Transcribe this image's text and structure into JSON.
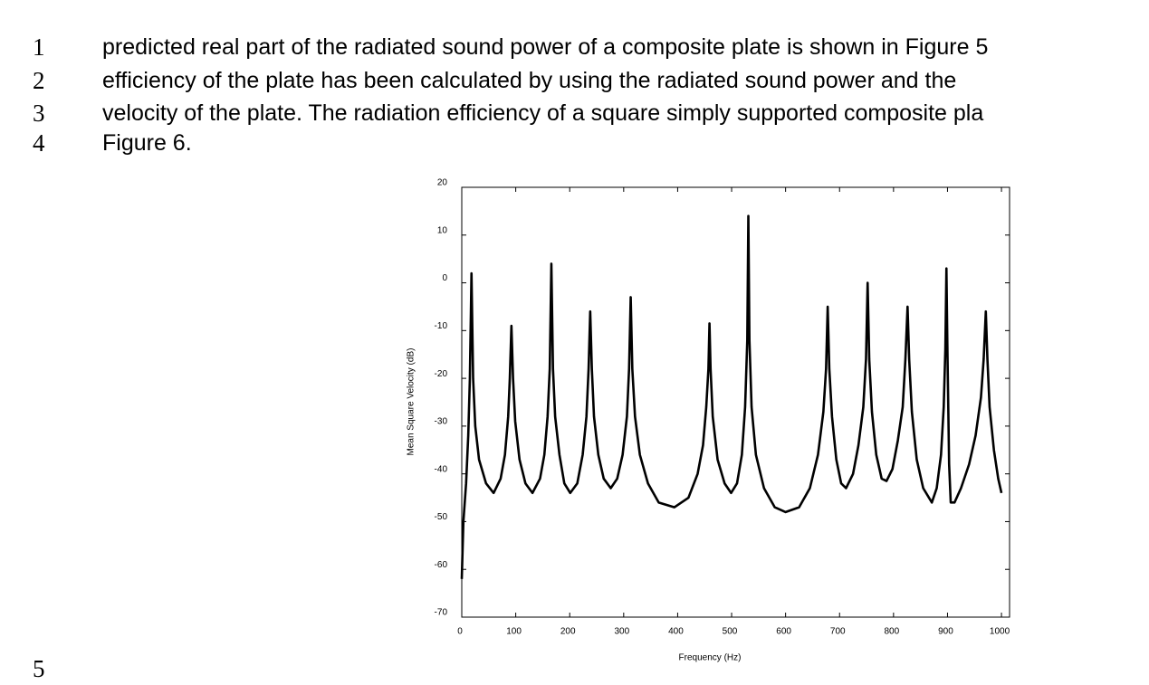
{
  "text": {
    "line_numbers": [
      "1",
      "2",
      "3",
      "4",
      "5"
    ],
    "lines": [
      "predicted real part of the radiated sound power of a composite plate is shown in Figure 5",
      "efficiency of the plate has been calculated by using the radiated sound power and the",
      "velocity of the plate. The radiation efficiency of a square simply supported composite pla",
      "Figure 6."
    ]
  },
  "chart_data": {
    "type": "line",
    "x_label": "Frequency (Hz)",
    "y_label": "Mean Square Velocity (dB)",
    "x": [
      0,
      3,
      8,
      12,
      15,
      18,
      21,
      25,
      32,
      45,
      59,
      72,
      80,
      86,
      89,
      92,
      95,
      99,
      107,
      118,
      131,
      145,
      153,
      159,
      163,
      166,
      169,
      173,
      181,
      190,
      201,
      214,
      224,
      231,
      235,
      238,
      241,
      245,
      253,
      263,
      276,
      288,
      298,
      306,
      310,
      313,
      316,
      321,
      330,
      345,
      365,
      394,
      420,
      437,
      447,
      453,
      457,
      459,
      461,
      465,
      474,
      487,
      499,
      510,
      519,
      525,
      529,
      531,
      533,
      537,
      545,
      560,
      580,
      600,
      625,
      645,
      660,
      670,
      675,
      678,
      681,
      686,
      694,
      703,
      712,
      725,
      735,
      744,
      749,
      752,
      755,
      760,
      768,
      778,
      787,
      798,
      808,
      817,
      822,
      826,
      829,
      834,
      843,
      855,
      871,
      880,
      888,
      893,
      896,
      898,
      900,
      903,
      906,
      913,
      925,
      940,
      952,
      962,
      967,
      971,
      974,
      978,
      986,
      994,
      1000
    ],
    "series": [
      {
        "color": "#000000",
        "values": [
          -62,
          -50,
          -42,
          -32,
          -20,
          2,
          -20,
          -30,
          -37,
          -42,
          -44,
          -41,
          -36,
          -28,
          -20,
          -9,
          -20,
          -29,
          -37,
          -42,
          -44,
          -41,
          -36,
          -28,
          -18,
          4,
          -18,
          -28,
          -36,
          -42,
          -44,
          -42,
          -36,
          -28,
          -18,
          -6,
          -18,
          -28,
          -36,
          -41,
          -43,
          -41,
          -36,
          -28,
          -18,
          -3,
          -18,
          -28,
          -36,
          -42,
          -46,
          -47,
          -45,
          -40,
          -34,
          -26,
          -18,
          -8.5,
          -18,
          -28,
          -37,
          -42,
          -44,
          -42,
          -36,
          -26,
          -12,
          14,
          -12,
          -26,
          -36,
          -43,
          -47,
          -48,
          -47,
          -43,
          -36,
          -27,
          -18,
          -5,
          -18,
          -28,
          -37,
          -42,
          -43,
          -40,
          -34,
          -26,
          -16,
          0,
          -16,
          -27,
          -36,
          -41,
          -41.5,
          -39,
          -33,
          -26,
          -16,
          -5,
          -16,
          -27,
          -37,
          -43,
          -46,
          -43,
          -36,
          -26,
          -14,
          3,
          -15,
          -38,
          -46,
          -46,
          -43,
          -38,
          -32,
          -24,
          -16,
          -6,
          -16,
          -26,
          -35,
          -41,
          -44
        ]
      }
    ],
    "xlim": [
      0,
      1015
    ],
    "ylim": [
      -70,
      20
    ],
    "xticks": [
      0,
      100,
      200,
      300,
      400,
      500,
      600,
      700,
      800,
      900,
      1000
    ],
    "yticks": [
      -70,
      -60,
      -50,
      -40,
      -30,
      -20,
      -10,
      0,
      10,
      20
    ],
    "grid": false
  }
}
